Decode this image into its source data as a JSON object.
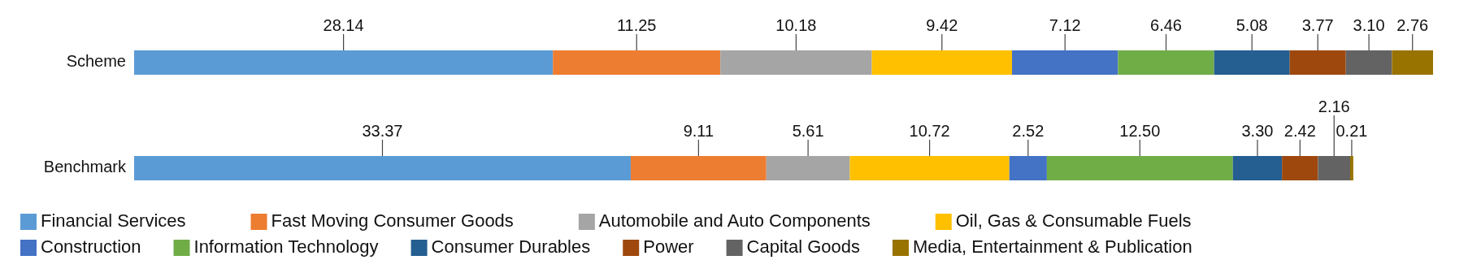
{
  "chart_data": {
    "type": "bar",
    "orientation": "horizontal",
    "stacked": true,
    "legend": "bottom",
    "categories": [
      "Scheme",
      "Benchmark"
    ],
    "series": [
      {
        "name": "Financial Services",
        "color": "#5b9bd5",
        "values": [
          28.14,
          33.37
        ],
        "value_labels": [
          "28.14",
          "33.37"
        ]
      },
      {
        "name": "Fast Moving Consumer Goods",
        "color": "#ed7d31",
        "values": [
          11.25,
          9.11
        ],
        "value_labels": [
          "11.25",
          "9.11"
        ]
      },
      {
        "name": "Automobile and Auto Components",
        "color": "#a5a5a5",
        "values": [
          10.18,
          5.61
        ],
        "value_labels": [
          "10.18",
          "5.61"
        ]
      },
      {
        "name": "Oil, Gas & Consumable Fuels",
        "color": "#ffc000",
        "values": [
          9.42,
          10.72
        ],
        "value_labels": [
          "9.42",
          "10.72"
        ]
      },
      {
        "name": "Construction",
        "color": "#4472c4",
        "values": [
          7.12,
          2.52
        ],
        "value_labels": [
          "7.12",
          "2.52"
        ]
      },
      {
        "name": "Information Technology",
        "color": "#70ad47",
        "values": [
          6.46,
          12.5
        ],
        "value_labels": [
          "6.46",
          "12.50"
        ]
      },
      {
        "name": "Consumer Durables",
        "color": "#255e91",
        "values": [
          5.08,
          3.3
        ],
        "value_labels": [
          "5.08",
          "3.30"
        ]
      },
      {
        "name": "Power",
        "color": "#9e480e",
        "values": [
          3.77,
          2.42
        ],
        "value_labels": [
          "3.77",
          "2.42"
        ]
      },
      {
        "name": "Capital Goods",
        "color": "#636363",
        "values": [
          3.1,
          2.16
        ],
        "value_labels": [
          "3.10",
          "2.16"
        ]
      },
      {
        "name": "Media, Entertainment & Publication",
        "color": "#997300",
        "values": [
          2.76,
          0.21
        ],
        "value_labels": [
          "2.76",
          "0.21"
        ]
      }
    ]
  }
}
